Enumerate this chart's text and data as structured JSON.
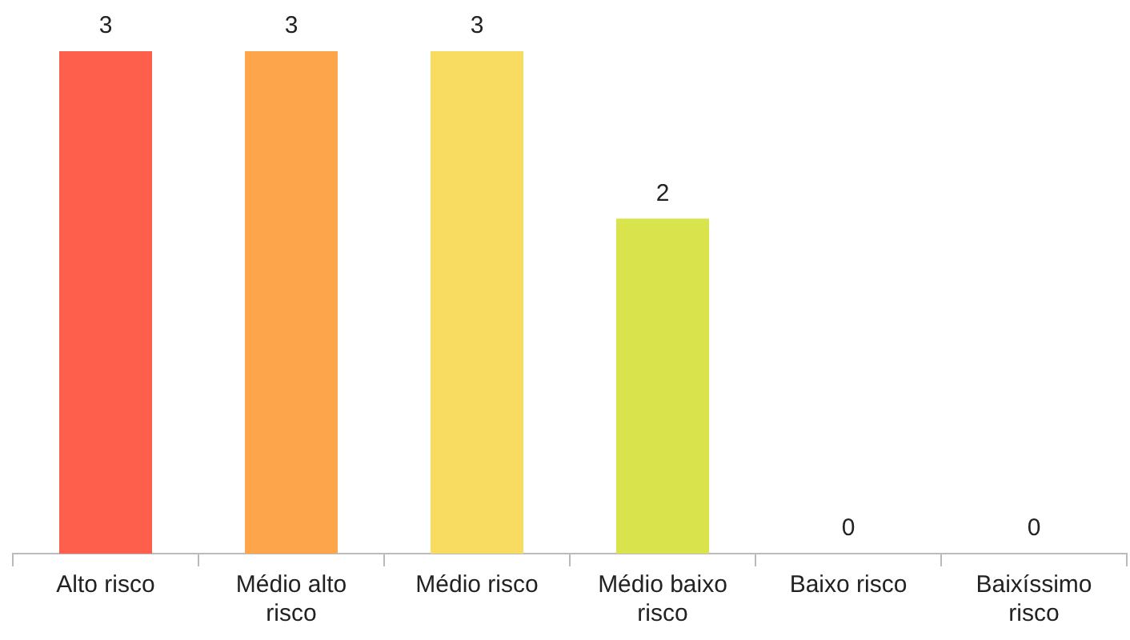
{
  "chart_data": {
    "type": "bar",
    "categories": [
      "Alto risco",
      "Médio alto risco",
      "Médio risco",
      "Médio baixo risco",
      "Baixo risco",
      "Baixíssimo risco"
    ],
    "values": [
      3,
      3,
      3,
      2,
      0,
      0
    ],
    "colors": [
      "#fe5f4c",
      "#fca54a",
      "#f8dc62",
      "#d9e44c",
      "#d9e44c",
      "#d9e44c"
    ],
    "data_labels": true,
    "grid": false,
    "legend": false
  }
}
